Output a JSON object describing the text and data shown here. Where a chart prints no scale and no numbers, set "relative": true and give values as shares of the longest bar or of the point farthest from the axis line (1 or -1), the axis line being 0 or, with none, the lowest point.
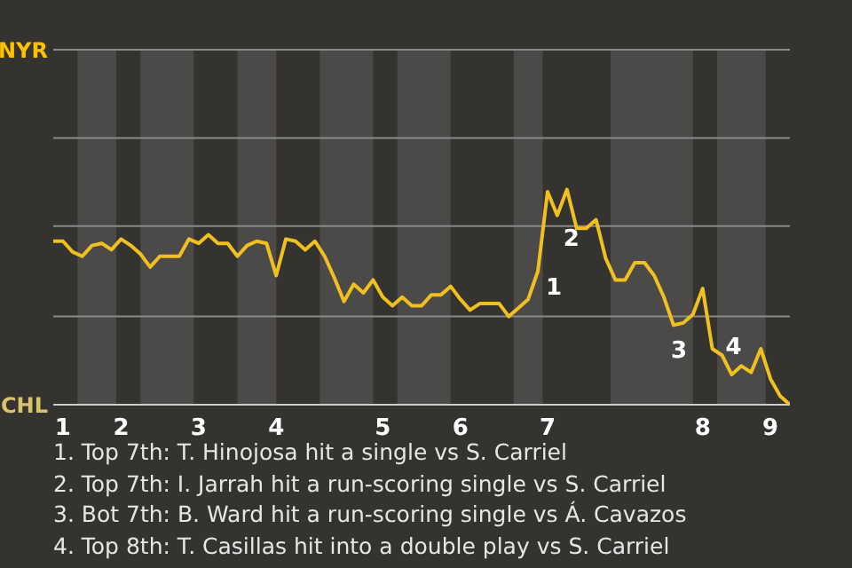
{
  "chart_data": {
    "type": "line",
    "relative": true,
    "categories": [
      null,
      "1",
      null,
      null,
      null,
      null,
      null,
      "2",
      null,
      null,
      null,
      null,
      null,
      null,
      null,
      "3",
      null,
      null,
      null,
      null,
      null,
      null,
      null,
      "4",
      null,
      null,
      null,
      null,
      null,
      null,
      null,
      null,
      null,
      null,
      "5",
      null,
      null,
      null,
      null,
      null,
      null,
      null,
      "6",
      null,
      null,
      null,
      null,
      null,
      null,
      null,
      null,
      "7",
      null,
      null,
      null,
      null,
      null,
      null,
      null,
      null,
      null,
      null,
      null,
      null,
      null,
      null,
      null,
      "8",
      null,
      null,
      null,
      null,
      null,
      null,
      "9",
      null,
      null
    ],
    "series": [
      {
        "color": "#f0c020",
        "values": [
          0.76,
          0.76,
          0.71,
          0.69,
          0.74,
          0.75,
          0.72,
          0.77,
          0.74,
          0.7,
          0.64,
          0.69,
          0.69,
          0.69,
          0.77,
          0.75,
          0.79,
          0.75,
          0.75,
          0.69,
          0.74,
          0.76,
          0.75,
          0.6,
          0.77,
          0.76,
          0.72,
          0.76,
          0.69,
          0.59,
          0.48,
          0.56,
          0.52,
          0.58,
          0.5,
          0.46,
          0.5,
          0.46,
          0.46,
          0.51,
          0.51,
          0.55,
          0.49,
          0.44,
          0.47,
          0.47,
          0.47,
          0.41,
          0.45,
          0.49,
          0.62,
          0.99,
          0.88,
          1,
          0.82,
          0.82,
          0.86,
          0.68,
          0.58,
          0.58,
          0.66,
          0.66,
          0.6,
          0.5,
          0.37,
          0.38,
          0.42,
          0.54,
          0.26,
          0.23,
          0.14,
          0.18,
          0.15,
          0.26,
          0.12,
          0.04,
          0
        ]
      }
    ],
    "marker": "none",
    "ref_lines": [
      {
        "axis": "y",
        "value": 0.41,
        "color": "#8a8a8a"
      },
      {
        "axis": "y",
        "value": 0.83,
        "color": "#8a8a8a"
      },
      {
        "axis": "y",
        "value": 1.24,
        "color": "#8a8a8a"
      },
      {
        "axis": "y",
        "value": 1.65,
        "color": "#8a8a8a"
      }
    ],
    "annotations": [
      "NYR",
      "CHL",
      "1",
      "2",
      "3",
      "4",
      "1. Top 7th: T. Hinojosa hit a single vs S. Carriel",
      "2. Top 7th: I. Jarrah hit a run-scoring single vs S. Carriel",
      "3. Bot 7th: B. Ward hit a run-scoring single vs Á. Cavazos",
      "4. Top 8th: T. Casillas hit into a double play vs S. Carriel"
    ]
  }
}
